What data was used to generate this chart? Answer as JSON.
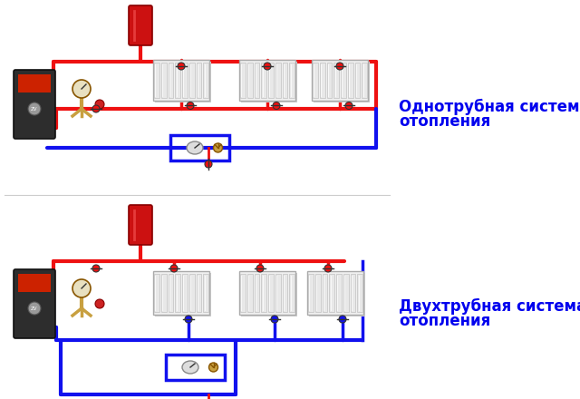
{
  "background_color": "#ffffff",
  "text1_line1": "Однотрубная система",
  "text1_line2": "отопления",
  "text2_line1": "Двухтрубная система",
  "text2_line2": "отопления",
  "text_color": "#0000ee",
  "text_fontsize": 12,
  "red": "#ee1111",
  "blue": "#1111ee",
  "pipe_lw": 3.0,
  "figure_width": 6.4,
  "figure_height": 4.4,
  "dpi": 100
}
